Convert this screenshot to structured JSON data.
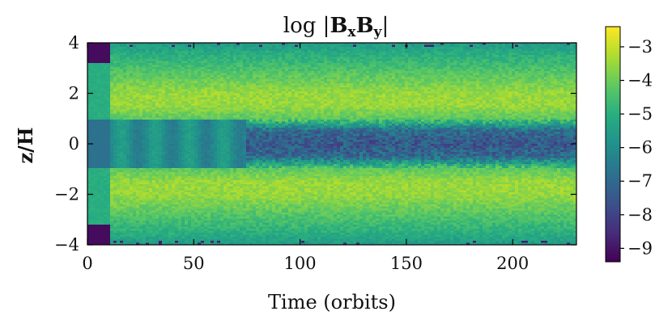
{
  "chart_data": {
    "type": "heatmap",
    "title": "log |BₓB_y|",
    "title_parts": {
      "prefix": "log |",
      "b1": "B",
      "s1": "x",
      "b2": "B",
      "s2": "y",
      "suffix": "|"
    },
    "xlabel": "Time (orbits)",
    "ylabel": "z/H",
    "xlim": [
      0,
      230
    ],
    "ylim": [
      -4,
      4
    ],
    "x_ticks": [
      0,
      50,
      100,
      150,
      200
    ],
    "x_tick_labels": [
      "0",
      "50",
      "100",
      "150",
      "200"
    ],
    "y_ticks": [
      -4,
      -2,
      0,
      2,
      4
    ],
    "y_tick_labels": [
      "−4",
      "−2",
      "0",
      "2",
      "4"
    ],
    "colorbar": {
      "range": [
        -9.4,
        -2.4
      ],
      "ticks": [
        -3,
        -4,
        -5,
        -6,
        -7,
        -8,
        -9
      ],
      "tick_labels": [
        "−3",
        "−4",
        "−5",
        "−6",
        "−7",
        "−8",
        "−9"
      ],
      "colormap": "viridis"
    },
    "approx_profile_vs_z": {
      "z": [
        -4,
        -3.5,
        -3,
        -2.5,
        -2,
        -1.5,
        -1,
        -0.5,
        0,
        0.5,
        1,
        1.5,
        2,
        2.5,
        3,
        3.5,
        4
      ],
      "log_value": [
        -5.6,
        -5.0,
        -4.5,
        -4.0,
        -3.5,
        -3.5,
        -4.2,
        -7.0,
        -7.5,
        -7.0,
        -4.2,
        -3.5,
        -3.5,
        -4.0,
        -4.5,
        -5.0,
        -5.6
      ]
    },
    "grid": false
  }
}
